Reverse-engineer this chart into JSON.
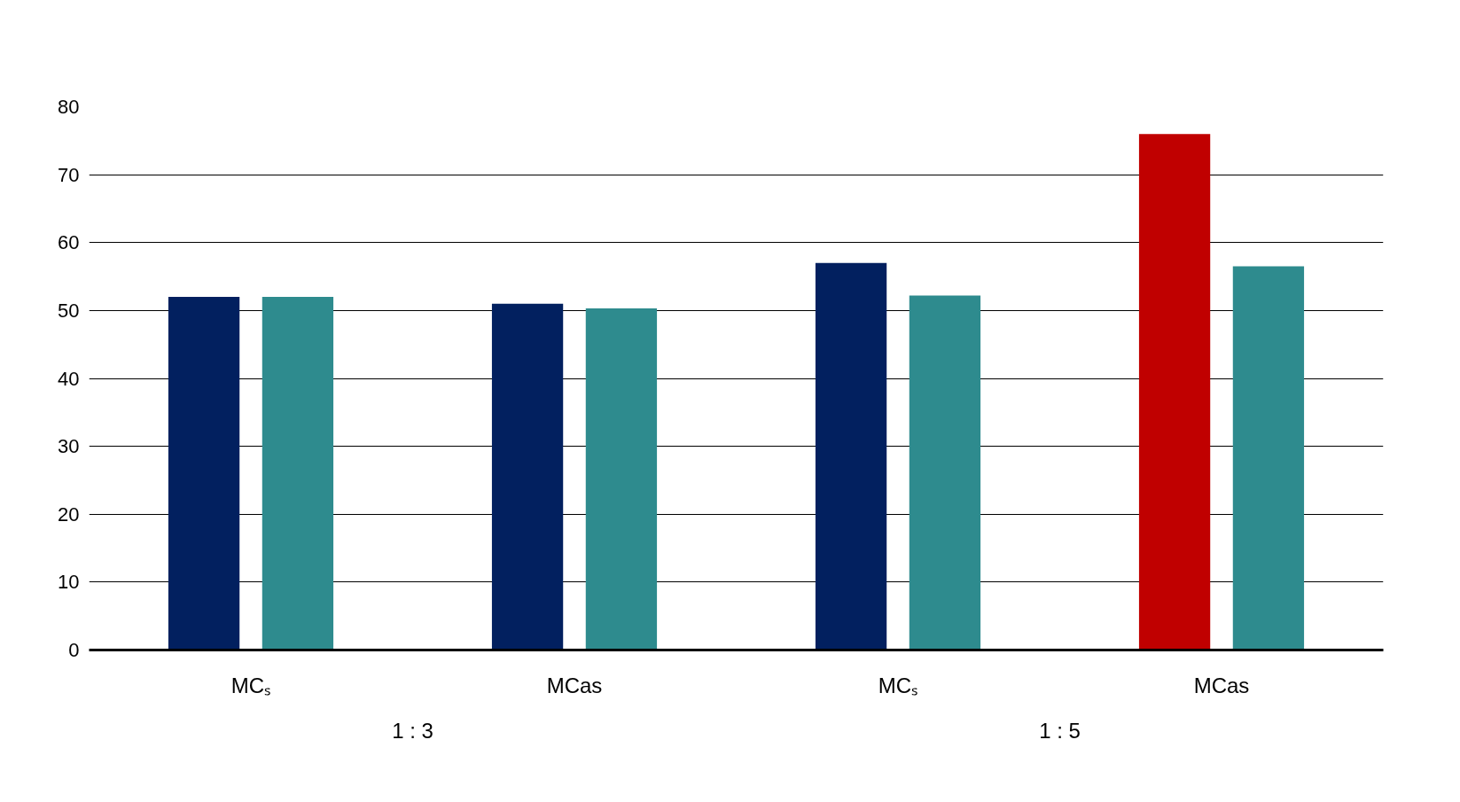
{
  "chart_data": {
    "type": "bar",
    "categories": [
      "MCₛ",
      "MCas",
      "MCₛ",
      "MCas"
    ],
    "series": [
      {
        "colors": [
          "#02205f",
          "#02205f",
          "#02205f",
          "#c00000"
        ],
        "values": [
          52,
          51,
          57,
          76
        ]
      },
      {
        "color": "#2e8b8e",
        "values": [
          52,
          50.3,
          52.2,
          56.5
        ]
      }
    ],
    "ylim": [
      0,
      80
    ],
    "yticks": [
      0,
      10,
      20,
      30,
      40,
      50,
      60,
      70,
      80
    ],
    "grid": "y",
    "annotations": [
      "1 : 3",
      "1 : 5"
    ]
  }
}
